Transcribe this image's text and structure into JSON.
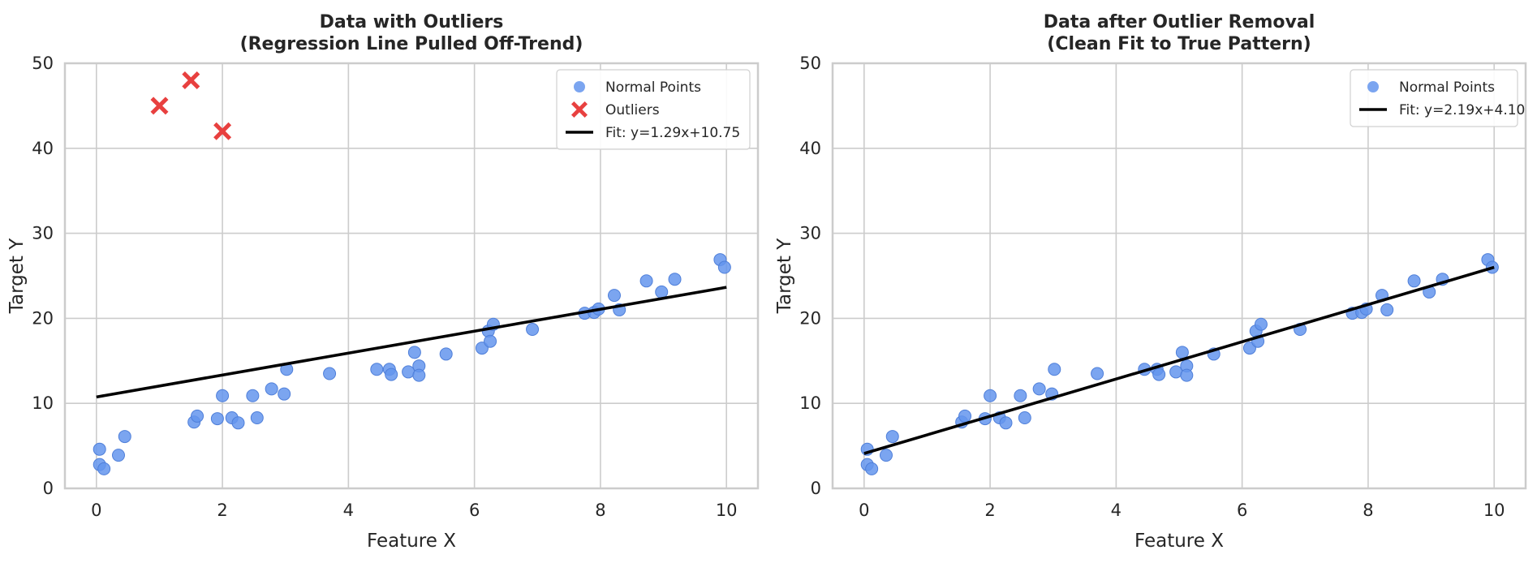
{
  "chart_data": [
    {
      "type": "scatter",
      "title": "Data with Outliers\n(Regression Line Pulled Off-Trend)",
      "xlabel": "Feature X",
      "ylabel": "Target Y",
      "xlim": [
        -0.5,
        10.5
      ],
      "ylim": [
        0,
        50
      ],
      "xticks": [
        0,
        2,
        4,
        6,
        8,
        10
      ],
      "yticks": [
        0,
        10,
        20,
        30,
        40,
        50
      ],
      "grid": true,
      "legend_position": "top-right",
      "series": [
        {
          "name": "Normal Points",
          "kind": "scatter",
          "marker": "circle",
          "color": "#6495ED",
          "points": [
            [
              0.05,
              4.6
            ],
            [
              0.05,
              2.8
            ],
            [
              0.12,
              2.3
            ],
            [
              0.35,
              3.9
            ],
            [
              0.45,
              6.1
            ],
            [
              1.55,
              7.8
            ],
            [
              1.6,
              8.5
            ],
            [
              1.92,
              8.2
            ],
            [
              2.0,
              10.9
            ],
            [
              2.15,
              8.3
            ],
            [
              2.25,
              7.7
            ],
            [
              2.48,
              10.9
            ],
            [
              2.55,
              8.3
            ],
            [
              2.78,
              11.7
            ],
            [
              2.98,
              11.1
            ],
            [
              3.02,
              14.0
            ],
            [
              3.7,
              13.5
            ],
            [
              4.45,
              14.0
            ],
            [
              4.65,
              14.0
            ],
            [
              4.68,
              13.4
            ],
            [
              4.95,
              13.7
            ],
            [
              5.05,
              16.0
            ],
            [
              5.12,
              14.4
            ],
            [
              5.12,
              13.3
            ],
            [
              5.55,
              15.8
            ],
            [
              6.12,
              16.5
            ],
            [
              6.22,
              18.5
            ],
            [
              6.25,
              17.3
            ],
            [
              6.3,
              19.3
            ],
            [
              6.92,
              18.7
            ],
            [
              7.75,
              20.6
            ],
            [
              7.9,
              20.7
            ],
            [
              7.97,
              21.1
            ],
            [
              8.22,
              22.7
            ],
            [
              8.3,
              21.0
            ],
            [
              8.73,
              24.4
            ],
            [
              8.97,
              23.1
            ],
            [
              9.18,
              24.6
            ],
            [
              9.9,
              26.9
            ],
            [
              9.97,
              26.0
            ]
          ]
        },
        {
          "name": "Outliers",
          "kind": "scatter",
          "marker": "x",
          "color": "#E8403F",
          "points": [
            [
              1.0,
              45
            ],
            [
              1.5,
              48
            ],
            [
              2.0,
              42
            ]
          ]
        },
        {
          "name": "Fit: y=1.29x+10.75",
          "kind": "line",
          "color": "#000000",
          "slope": 1.29,
          "intercept": 10.75,
          "x_range": [
            0,
            10
          ]
        }
      ]
    },
    {
      "type": "scatter",
      "title": "Data after Outlier Removal\n(Clean Fit to True Pattern)",
      "xlabel": "Feature X",
      "ylabel": "Target Y",
      "xlim": [
        -0.5,
        10.5
      ],
      "ylim": [
        0,
        50
      ],
      "xticks": [
        0,
        2,
        4,
        6,
        8,
        10
      ],
      "yticks": [
        0,
        10,
        20,
        30,
        40,
        50
      ],
      "grid": true,
      "legend_position": "top-right",
      "series": [
        {
          "name": "Normal Points",
          "kind": "scatter",
          "marker": "circle",
          "color": "#6495ED",
          "points": [
            [
              0.05,
              4.6
            ],
            [
              0.05,
              2.8
            ],
            [
              0.12,
              2.3
            ],
            [
              0.35,
              3.9
            ],
            [
              0.45,
              6.1
            ],
            [
              1.55,
              7.8
            ],
            [
              1.6,
              8.5
            ],
            [
              1.92,
              8.2
            ],
            [
              2.0,
              10.9
            ],
            [
              2.15,
              8.3
            ],
            [
              2.25,
              7.7
            ],
            [
              2.48,
              10.9
            ],
            [
              2.55,
              8.3
            ],
            [
              2.78,
              11.7
            ],
            [
              2.98,
              11.1
            ],
            [
              3.02,
              14.0
            ],
            [
              3.7,
              13.5
            ],
            [
              4.45,
              14.0
            ],
            [
              4.65,
              14.0
            ],
            [
              4.68,
              13.4
            ],
            [
              4.95,
              13.7
            ],
            [
              5.05,
              16.0
            ],
            [
              5.12,
              14.4
            ],
            [
              5.12,
              13.3
            ],
            [
              5.55,
              15.8
            ],
            [
              6.12,
              16.5
            ],
            [
              6.22,
              18.5
            ],
            [
              6.25,
              17.3
            ],
            [
              6.3,
              19.3
            ],
            [
              6.92,
              18.7
            ],
            [
              7.75,
              20.6
            ],
            [
              7.9,
              20.7
            ],
            [
              7.97,
              21.1
            ],
            [
              8.22,
              22.7
            ],
            [
              8.3,
              21.0
            ],
            [
              8.73,
              24.4
            ],
            [
              8.97,
              23.1
            ],
            [
              9.18,
              24.6
            ],
            [
              9.9,
              26.9
            ],
            [
              9.97,
              26.0
            ]
          ]
        },
        {
          "name": "Fit: y=2.19x+4.10",
          "kind": "line",
          "color": "#000000",
          "slope": 2.19,
          "intercept": 4.1,
          "x_range": [
            0,
            10
          ]
        }
      ]
    }
  ]
}
